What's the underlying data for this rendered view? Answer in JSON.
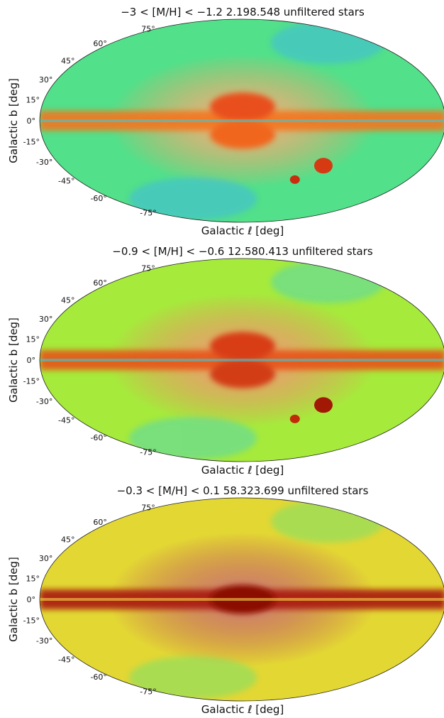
{
  "chart_data": [
    {
      "type": "heatmap",
      "projection": "mollweide",
      "title": "−3 < [M/H] < −1.2     2.198.548 unfiltered stars",
      "xlabel": "Galactic ℓ [deg]",
      "ylabel": "Galactic b [deg]",
      "yticks": [
        "75°",
        "60°",
        "45°",
        "30°",
        "15°",
        "0°",
        "-15°",
        "-30°",
        "-45°",
        "-60°",
        "-75°"
      ],
      "colormap": "turbo",
      "background_color": "#52e08a",
      "plane_color": "#f4761c",
      "features": [
        {
          "name": "galactic-disk",
          "l": 0,
          "b": 0,
          "color": "#f97a1f"
        },
        {
          "name": "bulge-north",
          "l": 0,
          "b": 10,
          "color": "#e8501a"
        },
        {
          "name": "bulge-south",
          "l": 0,
          "b": -10,
          "color": "#f0661d"
        },
        {
          "name": "LMC",
          "l": -80,
          "b": -33,
          "color": "#d63a12"
        },
        {
          "name": "SMC",
          "l": -57,
          "b": -44,
          "color": "#c92d0e"
        }
      ]
    },
    {
      "type": "heatmap",
      "projection": "mollweide",
      "title": "−0.9 < [M/H] < −0.6     12.580.413 unfiltered stars",
      "xlabel": "Galactic ℓ [deg]",
      "ylabel": "Galactic b [deg]",
      "yticks": [
        "75°",
        "60°",
        "45°",
        "30°",
        "15°",
        "0°",
        "-15°",
        "-30°",
        "-45°",
        "-60°",
        "-75°"
      ],
      "colormap": "turbo",
      "background_color": "#a6ea3c",
      "plane_color": "#e8531b",
      "features": [
        {
          "name": "galactic-disk",
          "l": 0,
          "b": 0,
          "color": "#e8531b"
        },
        {
          "name": "bulge-north",
          "l": 0,
          "b": 10,
          "color": "#d83d14"
        },
        {
          "name": "bulge-south",
          "l": 0,
          "b": -10,
          "color": "#d23c14"
        },
        {
          "name": "LMC",
          "l": -80,
          "b": -33,
          "color": "#a11805"
        },
        {
          "name": "SMC",
          "l": -57,
          "b": -44,
          "color": "#c02a0a"
        }
      ]
    },
    {
      "type": "heatmap",
      "projection": "mollweide",
      "title": "−0.3 < [M/H] < 0.1     58.323.699 unfiltered stars",
      "xlabel": "Galactic ℓ [deg]",
      "ylabel": "Galactic b [deg]",
      "yticks": [
        "75°",
        "60°",
        "45°",
        "30°",
        "15°",
        "0°",
        "-15°",
        "-30°",
        "-45°",
        "-60°",
        "-75°"
      ],
      "colormap": "turbo",
      "background_color": "#e3d734",
      "plane_color": "#a9170a",
      "features": [
        {
          "name": "galactic-disk",
          "l": 0,
          "b": 0,
          "color": "#a9170a"
        },
        {
          "name": "bulge",
          "l": 0,
          "b": 0,
          "color": "#8b1006"
        }
      ]
    }
  ]
}
